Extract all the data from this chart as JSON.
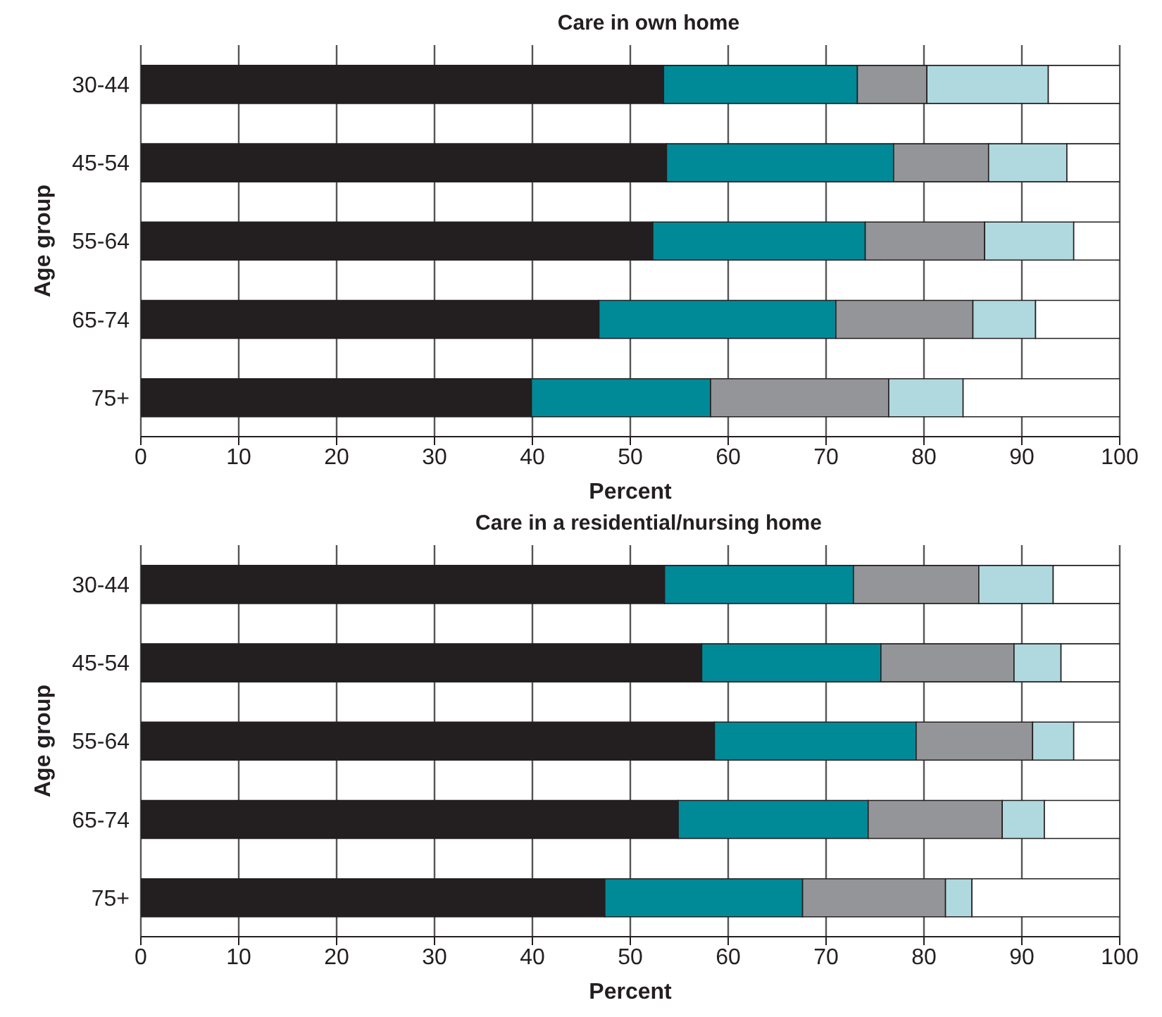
{
  "chart_data": [
    {
      "type": "bar",
      "orientation": "horizontal",
      "stacked": true,
      "title": "Care in own home",
      "xlabel": "Percent",
      "ylabel": "Age group",
      "categories": [
        "30-44",
        "45-54",
        "55-64",
        "65-74",
        "75+"
      ],
      "xlim": [
        0,
        100
      ],
      "xticks": [
        0,
        10,
        20,
        30,
        40,
        50,
        60,
        70,
        80,
        90,
        100
      ],
      "grid": "x",
      "legend": false,
      "series": [
        {
          "color": "#231f20",
          "values": [
            53.4,
            53.7,
            52.3,
            46.8,
            39.9
          ]
        },
        {
          "color": "#008a98",
          "values": [
            19.8,
            23.2,
            21.7,
            24.2,
            18.3
          ]
        },
        {
          "color": "#939598",
          "values": [
            7.1,
            9.7,
            12.2,
            14.0,
            18.2
          ]
        },
        {
          "color": "#b0d9df",
          "values": [
            12.4,
            8.0,
            9.1,
            6.4,
            7.6
          ]
        },
        {
          "color": "#ffffff",
          "values": [
            7.3,
            5.4,
            4.7,
            8.6,
            16.0
          ]
        }
      ]
    },
    {
      "type": "bar",
      "orientation": "horizontal",
      "stacked": true,
      "title": "Care in a residential/nursing home",
      "xlabel": "Percent",
      "ylabel": "Age group",
      "categories": [
        "30-44",
        "45-54",
        "55-64",
        "65-74",
        "75+"
      ],
      "xlim": [
        0,
        100
      ],
      "xticks": [
        0,
        10,
        20,
        30,
        40,
        50,
        60,
        70,
        80,
        90,
        100
      ],
      "grid": "x",
      "legend": false,
      "series": [
        {
          "color": "#231f20",
          "values": [
            53.5,
            57.3,
            58.6,
            54.9,
            47.4
          ]
        },
        {
          "color": "#008a98",
          "values": [
            19.3,
            18.3,
            20.6,
            19.4,
            20.2
          ]
        },
        {
          "color": "#939598",
          "values": [
            12.8,
            13.6,
            11.9,
            13.7,
            14.6
          ]
        },
        {
          "color": "#b0d9df",
          "values": [
            7.6,
            4.8,
            4.2,
            4.3,
            2.7
          ]
        },
        {
          "color": "#ffffff",
          "values": [
            6.8,
            6.0,
            4.7,
            7.7,
            15.1
          ]
        }
      ]
    }
  ]
}
